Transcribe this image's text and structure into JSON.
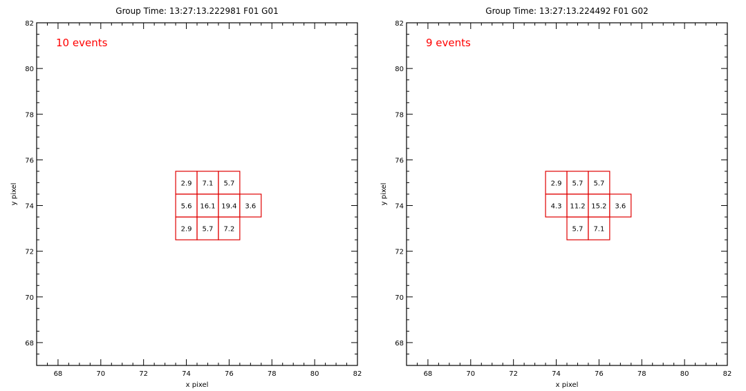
{
  "chart_data": [
    {
      "type": "heatmap",
      "title": "Group Time: 13:27:13.222981 F01 G01",
      "annotation": "10 events",
      "xlabel": "x pixel",
      "ylabel": "y pixel",
      "xlim": [
        67,
        82
      ],
      "ylim": [
        67,
        82
      ],
      "xticks": [
        68,
        70,
        72,
        74,
        76,
        78,
        80,
        82
      ],
      "yticks": [
        68,
        70,
        72,
        74,
        76,
        78,
        80,
        82
      ],
      "cells": [
        {
          "x": 74,
          "y": 75,
          "value": "2.9"
        },
        {
          "x": 75,
          "y": 75,
          "value": "7.1"
        },
        {
          "x": 76,
          "y": 75,
          "value": "5.7"
        },
        {
          "x": 74,
          "y": 74,
          "value": "5.6"
        },
        {
          "x": 75,
          "y": 74,
          "value": "16.1"
        },
        {
          "x": 76,
          "y": 74,
          "value": "19.4"
        },
        {
          "x": 77,
          "y": 74,
          "value": "3.6"
        },
        {
          "x": 74,
          "y": 73,
          "value": "2.9"
        },
        {
          "x": 75,
          "y": 73,
          "value": "5.7"
        },
        {
          "x": 76,
          "y": 73,
          "value": "7.2"
        }
      ]
    },
    {
      "type": "heatmap",
      "title": "Group Time: 13:27:13.224492 F01 G02",
      "annotation": "9 events",
      "xlabel": "x pixel",
      "ylabel": "y pixel",
      "xlim": [
        67,
        82
      ],
      "ylim": [
        67,
        82
      ],
      "xticks": [
        68,
        70,
        72,
        74,
        76,
        78,
        80,
        82
      ],
      "yticks": [
        68,
        70,
        72,
        74,
        76,
        78,
        80,
        82
      ],
      "cells": [
        {
          "x": 74,
          "y": 75,
          "value": "2.9"
        },
        {
          "x": 75,
          "y": 75,
          "value": "5.7"
        },
        {
          "x": 76,
          "y": 75,
          "value": "5.7"
        },
        {
          "x": 74,
          "y": 74,
          "value": "4.3"
        },
        {
          "x": 75,
          "y": 74,
          "value": "11.2"
        },
        {
          "x": 76,
          "y": 74,
          "value": "15.2"
        },
        {
          "x": 77,
          "y": 74,
          "value": "3.6"
        },
        {
          "x": 75,
          "y": 73,
          "value": "5.7"
        },
        {
          "x": 76,
          "y": 73,
          "value": "7.1"
        }
      ]
    }
  ]
}
